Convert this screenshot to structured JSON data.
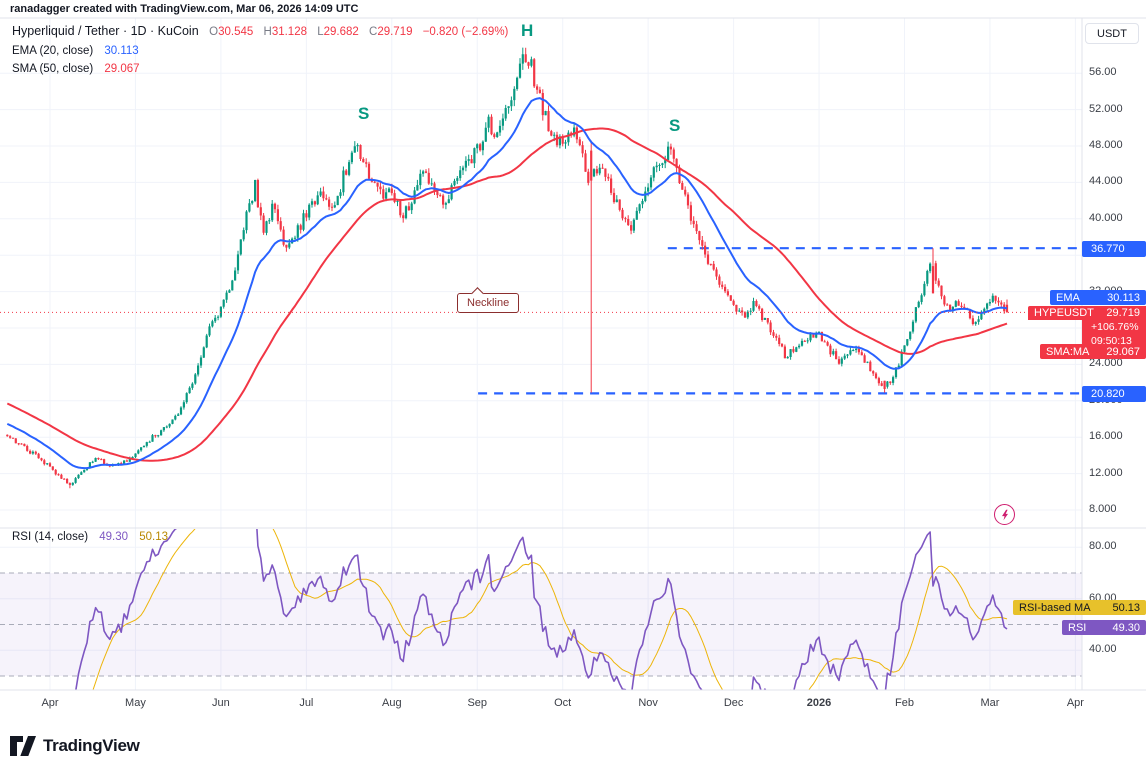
{
  "attribution": "ranadagger created with TradingView.com, Mar 06, 2026 14:09 UTC",
  "symbol": {
    "header": "Hyperliquid / Tether · 1D · KuCoin",
    "ohlc": {
      "o_label": "O",
      "o": "30.545",
      "h_label": "H",
      "h": "31.128",
      "l_label": "L",
      "l": "29.682",
      "c_label": "C",
      "c": "29.719",
      "change": "−0.820 (−2.69%)"
    }
  },
  "indicators": {
    "ema": {
      "label": "EMA (20, close)",
      "value": "30.113",
      "color": "#2962ff"
    },
    "sma": {
      "label": "SMA (50, close)",
      "value": "29.067",
      "color": "#f23645"
    },
    "rsi": {
      "label": "RSI (14, close)",
      "value": "49.30",
      "ma_value": "50.13"
    }
  },
  "annotations": {
    "s_left": "S",
    "h": "H",
    "s_right": "S",
    "neckline": "Neckline"
  },
  "price_scale": {
    "currency": "USDT",
    "ticks": [
      "56.00",
      "52.000",
      "48.000",
      "44.000",
      "40.000",
      "36.000",
      "32.000",
      "28.000",
      "24.000",
      "20.000",
      "16.000",
      "12.000",
      "8.000"
    ]
  },
  "rsi_scale": {
    "ticks": [
      "80.00",
      "60.00",
      "40.00"
    ]
  },
  "badges": {
    "upper_level": "36.770",
    "lower_level": "20.820",
    "ema_badge": {
      "label": "EMA",
      "value": "30.113"
    },
    "price_badge": {
      "label": "HYPEUSDT",
      "value": "29.719",
      "change_pct": "+106.76%",
      "countdown": "09:50:13"
    },
    "sma_badge": {
      "label": "SMA:MA",
      "value": "29.067"
    },
    "rsi_ma_badge": {
      "label": "RSI-based MA",
      "value": "50.13"
    },
    "rsi_badge": {
      "label": "RSI",
      "value": "49.30"
    }
  },
  "time_axis": [
    "Apr",
    "May",
    "Jun",
    "Jul",
    "Aug",
    "Sep",
    "Oct",
    "Nov",
    "Dec",
    "2026",
    "Feb",
    "Mar",
    "Apr"
  ],
  "footer": {
    "brand": "TradingView"
  },
  "colors": {
    "up": "#089981",
    "down": "#f23645",
    "blue": "#2962ff",
    "purple": "#7e57c2",
    "rsi_ma_line": "#edb50a",
    "rsi_ma_text": "#b98800",
    "yellow_badge": "#e7c12b",
    "magenta": "#cf1d6f",
    "teal": "#089981",
    "maroon": "#8b2e2e",
    "grid": "#f0f3fa",
    "border": "#e0e3eb",
    "axis_text": "#3a3e46",
    "band_fill": "rgba(126,87,194,0.07)"
  },
  "chart_data": {
    "type": "candlestick",
    "symbol": "HYPEUSDT",
    "exchange": "KuCoin",
    "interval": "1D",
    "price_axis": {
      "min": 8,
      "max": 60,
      "tick_step": 4
    },
    "levels": [
      {
        "value": 36.77,
        "label": "36.770",
        "style": "dashed",
        "color": "#2962ff",
        "x_start_month": 7.23
      },
      {
        "value": 20.82,
        "label": "20.820",
        "style": "dashed",
        "color": "#2962ff",
        "x_start_month": 5.01
      }
    ],
    "pattern": {
      "name": "head-and-shoulders",
      "left_shoulder_month": 3.6,
      "head_month": 5.58,
      "right_shoulder_month": 7.25,
      "neckline_label": "Neckline"
    },
    "keyframes": {
      "m": [
        -2.5,
        -2.0,
        -1.5,
        -1.0,
        -0.7,
        -0.5,
        -0.3,
        -0.1,
        0.1,
        0.25,
        0.4,
        0.55,
        0.7,
        0.85,
        1.0,
        1.2,
        1.4,
        1.55,
        1.7,
        1.85,
        2.0,
        2.15,
        2.3,
        2.4,
        2.5,
        2.62,
        2.75,
        2.88,
        3.0,
        3.15,
        3.3,
        3.45,
        3.6,
        3.72,
        3.85,
        4.0,
        4.12,
        4.25,
        4.38,
        4.5,
        4.62,
        4.75,
        4.88,
        5.0,
        5.12,
        5.25,
        5.38,
        5.5,
        5.58,
        5.68,
        5.78,
        5.88,
        6.0,
        6.1,
        6.2,
        6.3,
        6.42,
        6.55,
        6.68,
        6.8,
        6.9,
        7.0,
        7.12,
        7.25,
        7.38,
        7.5,
        7.62,
        7.75,
        7.88,
        8.0,
        8.12,
        8.25,
        8.38,
        8.5,
        8.62,
        8.75,
        8.88,
        9.0,
        9.12,
        9.25,
        9.38,
        9.5,
        9.62,
        9.75,
        9.85,
        9.95,
        10.05,
        10.15,
        10.25,
        10.32,
        10.42,
        10.52,
        10.62,
        10.72,
        10.8,
        10.9,
        11.0,
        11.08,
        11.15,
        11.2
      ],
      "close": [
        26.0,
        23.0,
        20.5,
        18.0,
        17.0,
        16.2,
        14.8,
        13.5,
        11.8,
        10.8,
        12.5,
        13.8,
        12.8,
        13.2,
        14.0,
        16.0,
        17.5,
        19.5,
        23.0,
        27.5,
        30.0,
        33.5,
        40.5,
        43.5,
        39.0,
        41.5,
        37.0,
        38.5,
        40.5,
        43.0,
        41.0,
        45.0,
        48.0,
        45.5,
        42.5,
        43.5,
        40.0,
        42.0,
        45.5,
        43.0,
        41.5,
        44.0,
        46.0,
        47.5,
        50.5,
        49.0,
        53.0,
        56.5,
        58.3,
        55.0,
        51.5,
        49.0,
        48.5,
        50.0,
        47.5,
        44.5,
        46.0,
        43.5,
        40.5,
        38.5,
        41.0,
        43.5,
        46.0,
        47.5,
        43.5,
        40.0,
        37.0,
        34.5,
        32.0,
        30.5,
        29.0,
        31.0,
        28.5,
        26.5,
        24.8,
        26.0,
        27.0,
        27.5,
        25.5,
        24.2,
        26.0,
        25.0,
        23.0,
        21.5,
        22.5,
        24.5,
        27.5,
        30.5,
        33.5,
        35.0,
        31.5,
        29.8,
        31.0,
        30.2,
        28.8,
        29.5,
        31.0,
        31.5,
        30.2,
        29.719
      ]
    },
    "events": {
      "spikes": [
        {
          "m": 0.25,
          "low": 10.4
        },
        {
          "m": 2.4,
          "high": 44.3
        },
        {
          "m": 5.58,
          "high": 58.8
        },
        {
          "m": 6.34,
          "open": 47.5,
          "close": 44.2,
          "high": 48.6,
          "low": 20.9
        },
        {
          "m": 9.78,
          "open": 22.2,
          "close": 21.3,
          "low": 20.9
        },
        {
          "m": 10.32,
          "open": 34.8,
          "close": 31.8,
          "high": 36.77
        }
      ]
    },
    "indicators": {
      "ema_period": 20,
      "ema_last": 30.113,
      "sma_period": 50,
      "sma_last": 29.067,
      "rsi_period": 14,
      "rsi_last": 49.3,
      "rsi_ma_last": 50.13,
      "rsi_band": [
        30,
        70
      ]
    },
    "last_candle": {
      "open": 30.545,
      "high": 31.128,
      "low": 29.682,
      "close": 29.719,
      "change": -0.82,
      "change_pct": -2.69
    }
  }
}
